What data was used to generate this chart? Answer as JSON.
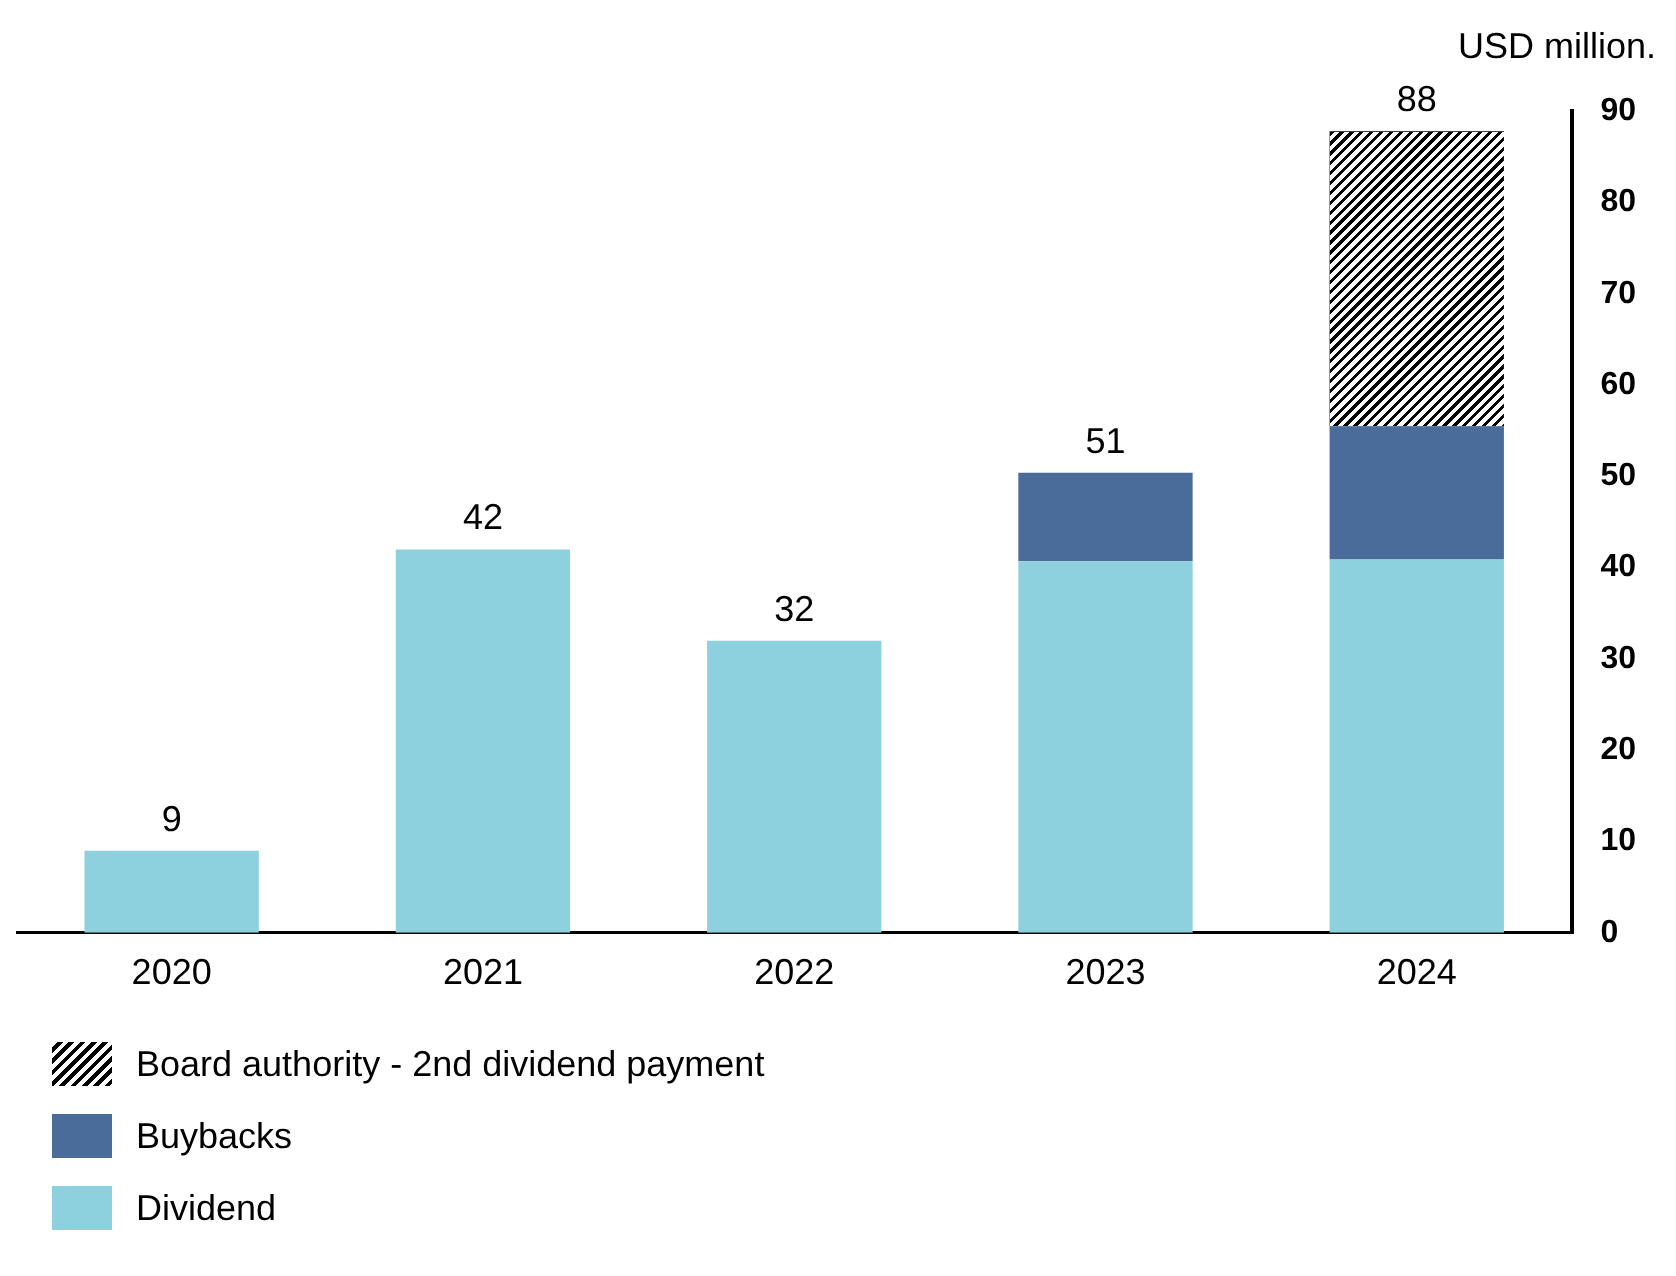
{
  "chart_data": {
    "type": "bar",
    "ylabel": "USD million.",
    "categories": [
      "2020",
      "2021",
      "2022",
      "2023",
      "2024"
    ],
    "stacked": true,
    "series": [
      {
        "name": "Dividend",
        "color": "#8dd1de",
        "values": [
          9,
          42,
          32,
          40.7,
          40.9
        ]
      },
      {
        "name": "Buybacks",
        "color": "#4a6c9b",
        "values": [
          null,
          null,
          null,
          9.7,
          14.6
        ]
      },
      {
        "name": "Board authority - 2nd dividend payment",
        "color": "#000000",
        "values": [
          null,
          null,
          null,
          null,
          32.3
        ]
      }
    ],
    "totals": [
      "9",
      "42",
      "32",
      "51",
      "88"
    ],
    "ylim": [
      0,
      90
    ],
    "yticks": [
      0,
      10,
      20,
      30,
      40,
      50,
      60,
      70,
      80,
      90
    ],
    "grid": false,
    "legend": "bottom left"
  }
}
